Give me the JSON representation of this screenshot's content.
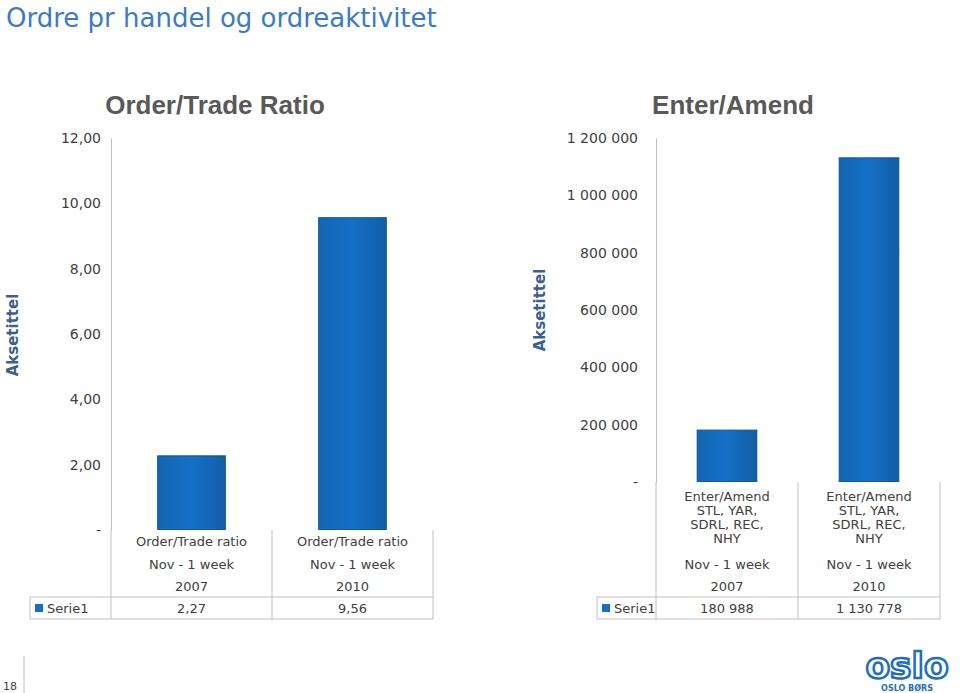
{
  "page": {
    "title": "Ordre pr handel og ordreaktivitet",
    "page_number": 18,
    "logo": "oslo",
    "logo_caption": "OSLO BØRS"
  },
  "chart_data": [
    {
      "type": "bar",
      "title": "Order/Trade Ratio",
      "ylabel": "Aksetittel",
      "categories": [
        [
          "Order/Trade ratio",
          "Nov - 1 week",
          "2007"
        ],
        [
          "Order/Trade ratio",
          "Nov - 1 week",
          "2010"
        ]
      ],
      "series": [
        {
          "name": "Serie1",
          "color": "#1570c6",
          "values": [
            2.27,
            9.56
          ],
          "value_labels": [
            "2,27",
            "9,56"
          ]
        }
      ],
      "ylim": [
        0,
        12
      ],
      "yticks": [
        {
          "value": 0,
          "label": "-"
        },
        {
          "value": 2,
          "label": "2,00"
        },
        {
          "value": 4,
          "label": "4,00"
        },
        {
          "value": 6,
          "label": "6,00"
        },
        {
          "value": 8,
          "label": "8,00"
        },
        {
          "value": 10,
          "label": "10,00"
        },
        {
          "value": 12,
          "label": "12,00"
        }
      ],
      "grid": false
    },
    {
      "type": "bar",
      "title": "Enter/Amend",
      "ylabel": "Aksetittel",
      "categories": [
        [
          "Enter/Amend STL, YAR, SDRL, REC, NHY",
          "Nov - 1 week",
          "2007"
        ],
        [
          "Enter/Amend STL, YAR, SDRL, REC, NHY",
          "Nov - 1 week",
          "2010"
        ]
      ],
      "series": [
        {
          "name": "Serie1",
          "color": "#1570c6",
          "values": [
            180988,
            1130778
          ],
          "value_labels": [
            "180 988",
            "1 130 778"
          ]
        }
      ],
      "ylim": [
        0,
        1200000
      ],
      "yticks": [
        {
          "value": 0,
          "label": "-"
        },
        {
          "value": 200000,
          "label": "200 000"
        },
        {
          "value": 400000,
          "label": "400 000"
        },
        {
          "value": 600000,
          "label": "600 000"
        },
        {
          "value": 800000,
          "label": "800 000"
        },
        {
          "value": 1000000,
          "label": "1 000 000"
        },
        {
          "value": 1200000,
          "label": "1 200 000"
        }
      ],
      "grid": false
    }
  ]
}
